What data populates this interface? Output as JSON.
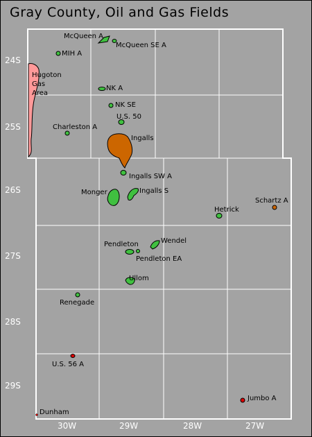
{
  "title": "Gray County, Oil and Gas Fields",
  "colors": {
    "background": "#a3a3a3",
    "gas": "#ff9999",
    "oil": "#40c040",
    "oil_gas": "#cc6600",
    "abandoned": "#dd0000",
    "lines": "#ffffff"
  },
  "townships": {
    "t24": "24S",
    "t25": "25S",
    "t26": "26S",
    "t27": "27S",
    "t28": "28S",
    "t29": "29S"
  },
  "ranges": {
    "r30": "30W",
    "r29": "29W",
    "r28": "28W",
    "r27": "27W"
  },
  "fields": {
    "mcqueen_a": "McQueen A",
    "mcqueen_se_a": "McQueen SE A",
    "mih_a": "MIH A",
    "hugoton": "Hugoton\nGas\nArea",
    "nk_a": "NK A",
    "nk_se": "NK SE",
    "us50": "U.S. 50",
    "charleston_a": "Charleston A",
    "ingalls": "Ingalls",
    "ingalls_sw_a": "Ingalls SW A",
    "monger": "Monger",
    "ingalls_s": "Ingalls S",
    "schartz_a": "Schartz A",
    "hetrick": "Hetrick",
    "pendleton": "Pendleton",
    "wendel": "Wendel",
    "pendleton_ea": "Pendleton EA",
    "ullom": "Ullom",
    "renegade": "Renegade",
    "us56_a": "U.S. 56 A",
    "jumbo_a": "Jumbo A",
    "dunham": "Dunham"
  }
}
